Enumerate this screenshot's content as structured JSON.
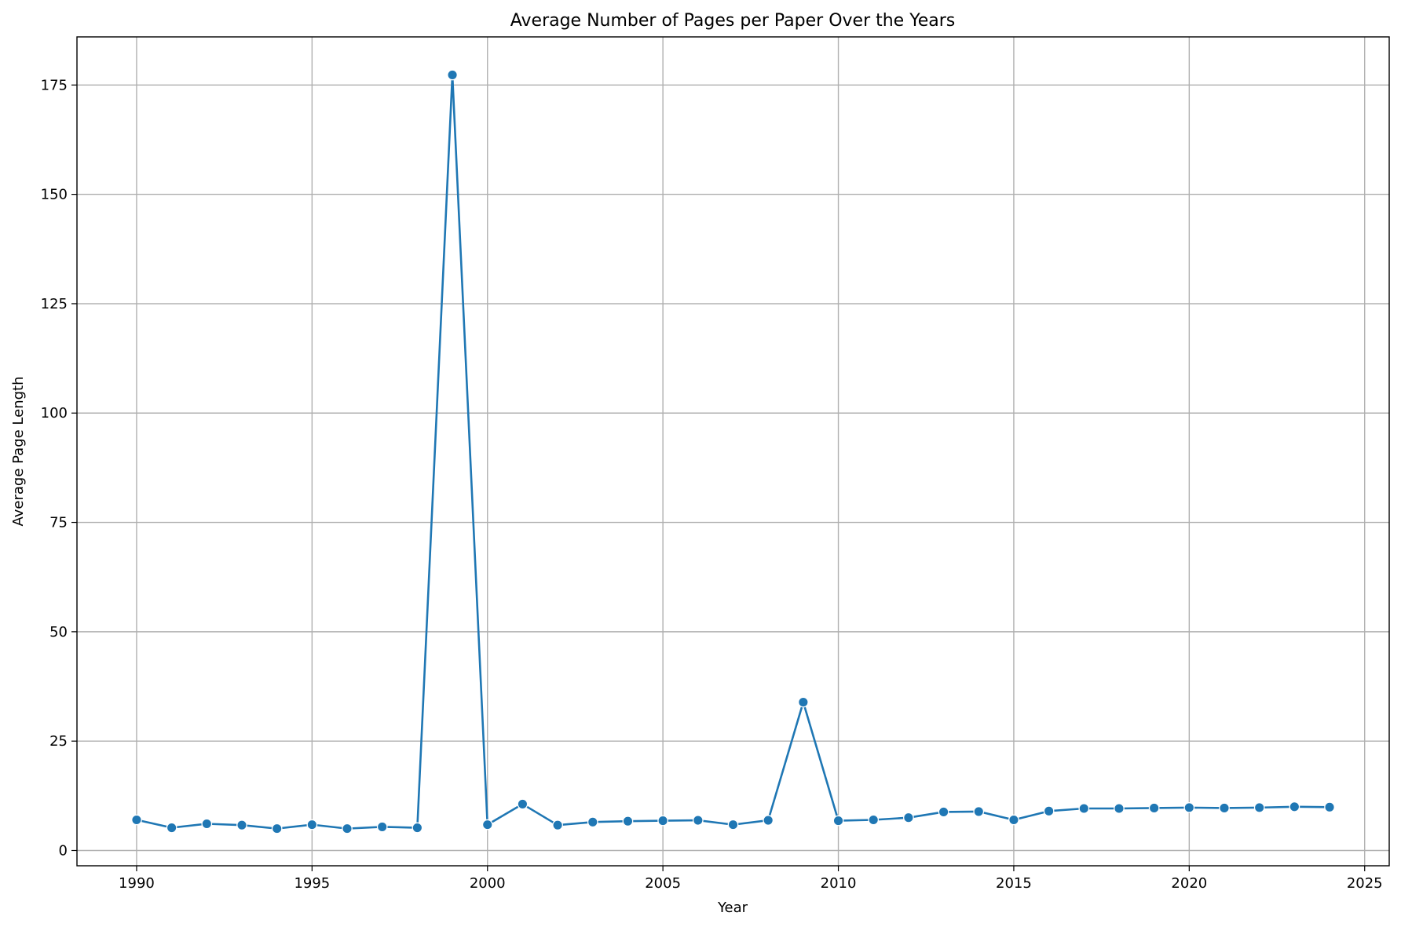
{
  "chart_data": {
    "type": "line",
    "title": "Average Number of Pages per Paper Over the Years",
    "xlabel": "Year",
    "ylabel": "Average Page Length",
    "xlim": [
      1988.3,
      2025.7
    ],
    "ylim": [
      -3.5,
      186
    ],
    "x_ticks": [
      1990,
      1995,
      2000,
      2005,
      2010,
      2015,
      2020,
      2025
    ],
    "y_ticks": [
      0,
      25,
      50,
      75,
      100,
      125,
      150,
      175
    ],
    "grid": true,
    "legend": "none",
    "series": [
      {
        "color": "#1f77b4",
        "marker": "circle",
        "x": [
          1990,
          1991,
          1992,
          1993,
          1994,
          1995,
          1996,
          1997,
          1998,
          1999,
          2000,
          2001,
          2002,
          2003,
          2004,
          2005,
          2006,
          2007,
          2008,
          2009,
          2010,
          2011,
          2012,
          2013,
          2014,
          2015,
          2016,
          2017,
          2018,
          2019,
          2020,
          2021,
          2022,
          2023,
          2024
        ],
        "values": [
          7.0,
          5.2,
          6.1,
          5.8,
          5.0,
          5.9,
          5.0,
          5.4,
          5.2,
          177.3,
          5.9,
          10.6,
          5.8,
          6.5,
          6.7,
          6.8,
          6.9,
          5.9,
          6.9,
          33.9,
          6.8,
          7.0,
          7.5,
          8.8,
          8.9,
          7.0,
          9.0,
          9.6,
          9.6,
          9.7,
          9.8,
          9.7,
          9.8,
          10.0,
          9.9
        ]
      }
    ]
  }
}
